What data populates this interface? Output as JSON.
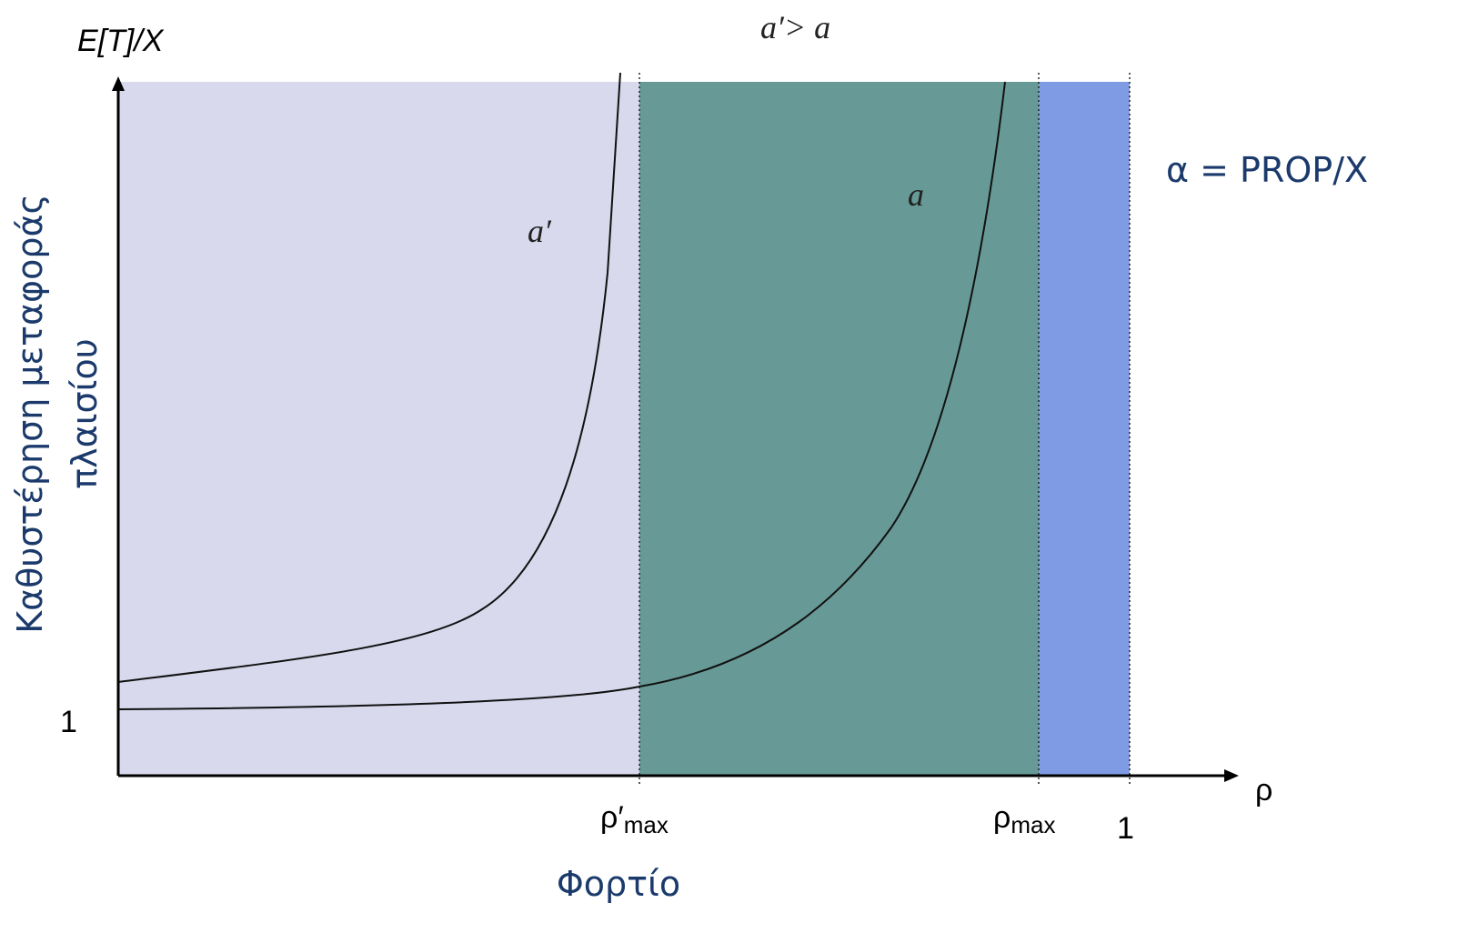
{
  "axes": {
    "y_label": "E[T]/X",
    "x_label": "ρ",
    "y_one": "1",
    "x_one": "1"
  },
  "annotations": {
    "top": "a′> a",
    "alpha": "α = PROP/X"
  },
  "curves": [
    {
      "label": "a′"
    },
    {
      "label": "a"
    }
  ],
  "x_markers": [
    {
      "symbol": "ρ′",
      "subscript": "max"
    },
    {
      "symbol": "ρ",
      "subscript": "max"
    }
  ],
  "x_title": "Φορτίο",
  "y_title": [
    "Καθυστέρηση μεταφοράς",
    "πλαισίου"
  ]
}
